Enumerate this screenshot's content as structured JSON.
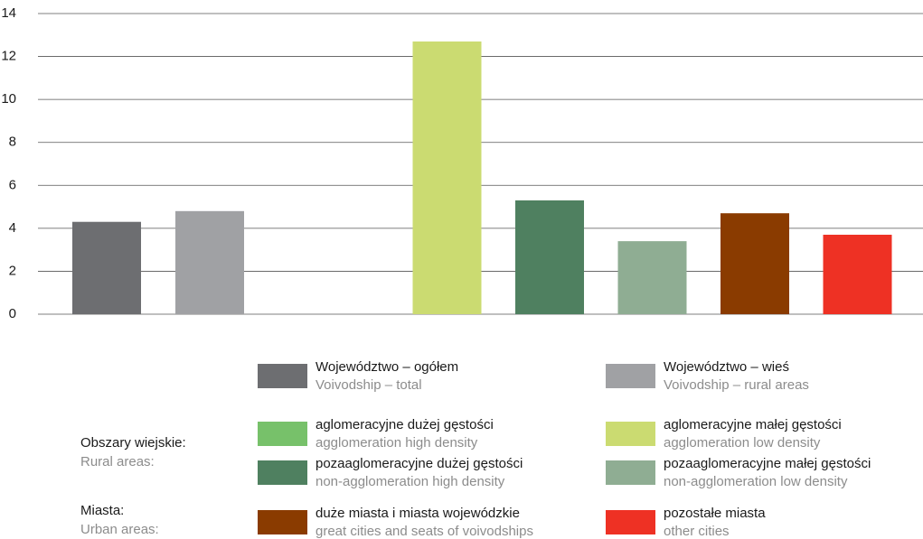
{
  "chart_data": {
    "type": "bar",
    "values": [
      4.3,
      4.8,
      null,
      12.7,
      5.3,
      3.4,
      4.7,
      3.7
    ],
    "colors": [
      "#6d6e71",
      "#a0a1a4",
      "#77c16a",
      "#cbdb71",
      "#4f8060",
      "#8fad93",
      "#8a3b00",
      "#ee3124"
    ],
    "ylim": [
      0,
      14
    ],
    "yticks": [
      0,
      2,
      4,
      6,
      8,
      10,
      12,
      14
    ],
    "grid": true,
    "legend": [
      {
        "name": "Województwo – ogółem",
        "subname": "Voivodship – total"
      },
      {
        "name": "Województwo – wieś",
        "subname": "Voivodship – rural areas"
      },
      {
        "name": "aglomeracyjne dużej gęstości",
        "subname": "agglomeration high density"
      },
      {
        "name": "aglomeracyjne małej gęstości",
        "subname": "agglomeration low density"
      },
      {
        "name": "pozaaglomeracyjne dużej gęstości",
        "subname": "non-agglomeration high density"
      },
      {
        "name": "pozaaglomeracyjne małej gęstości",
        "subname": "non-agglomeration low density"
      },
      {
        "name": "duże miasta i miasta wojewódzkie",
        "subname": "great cities and seats of voivodships"
      },
      {
        "name": "pozostałe miasta",
        "subname": "other cities"
      }
    ],
    "groups": [
      {
        "label": "Obszary wiejskie:",
        "sublabel": "Rural areas:"
      },
      {
        "label": "Miasta:",
        "sublabel": "Urban areas:"
      }
    ]
  }
}
